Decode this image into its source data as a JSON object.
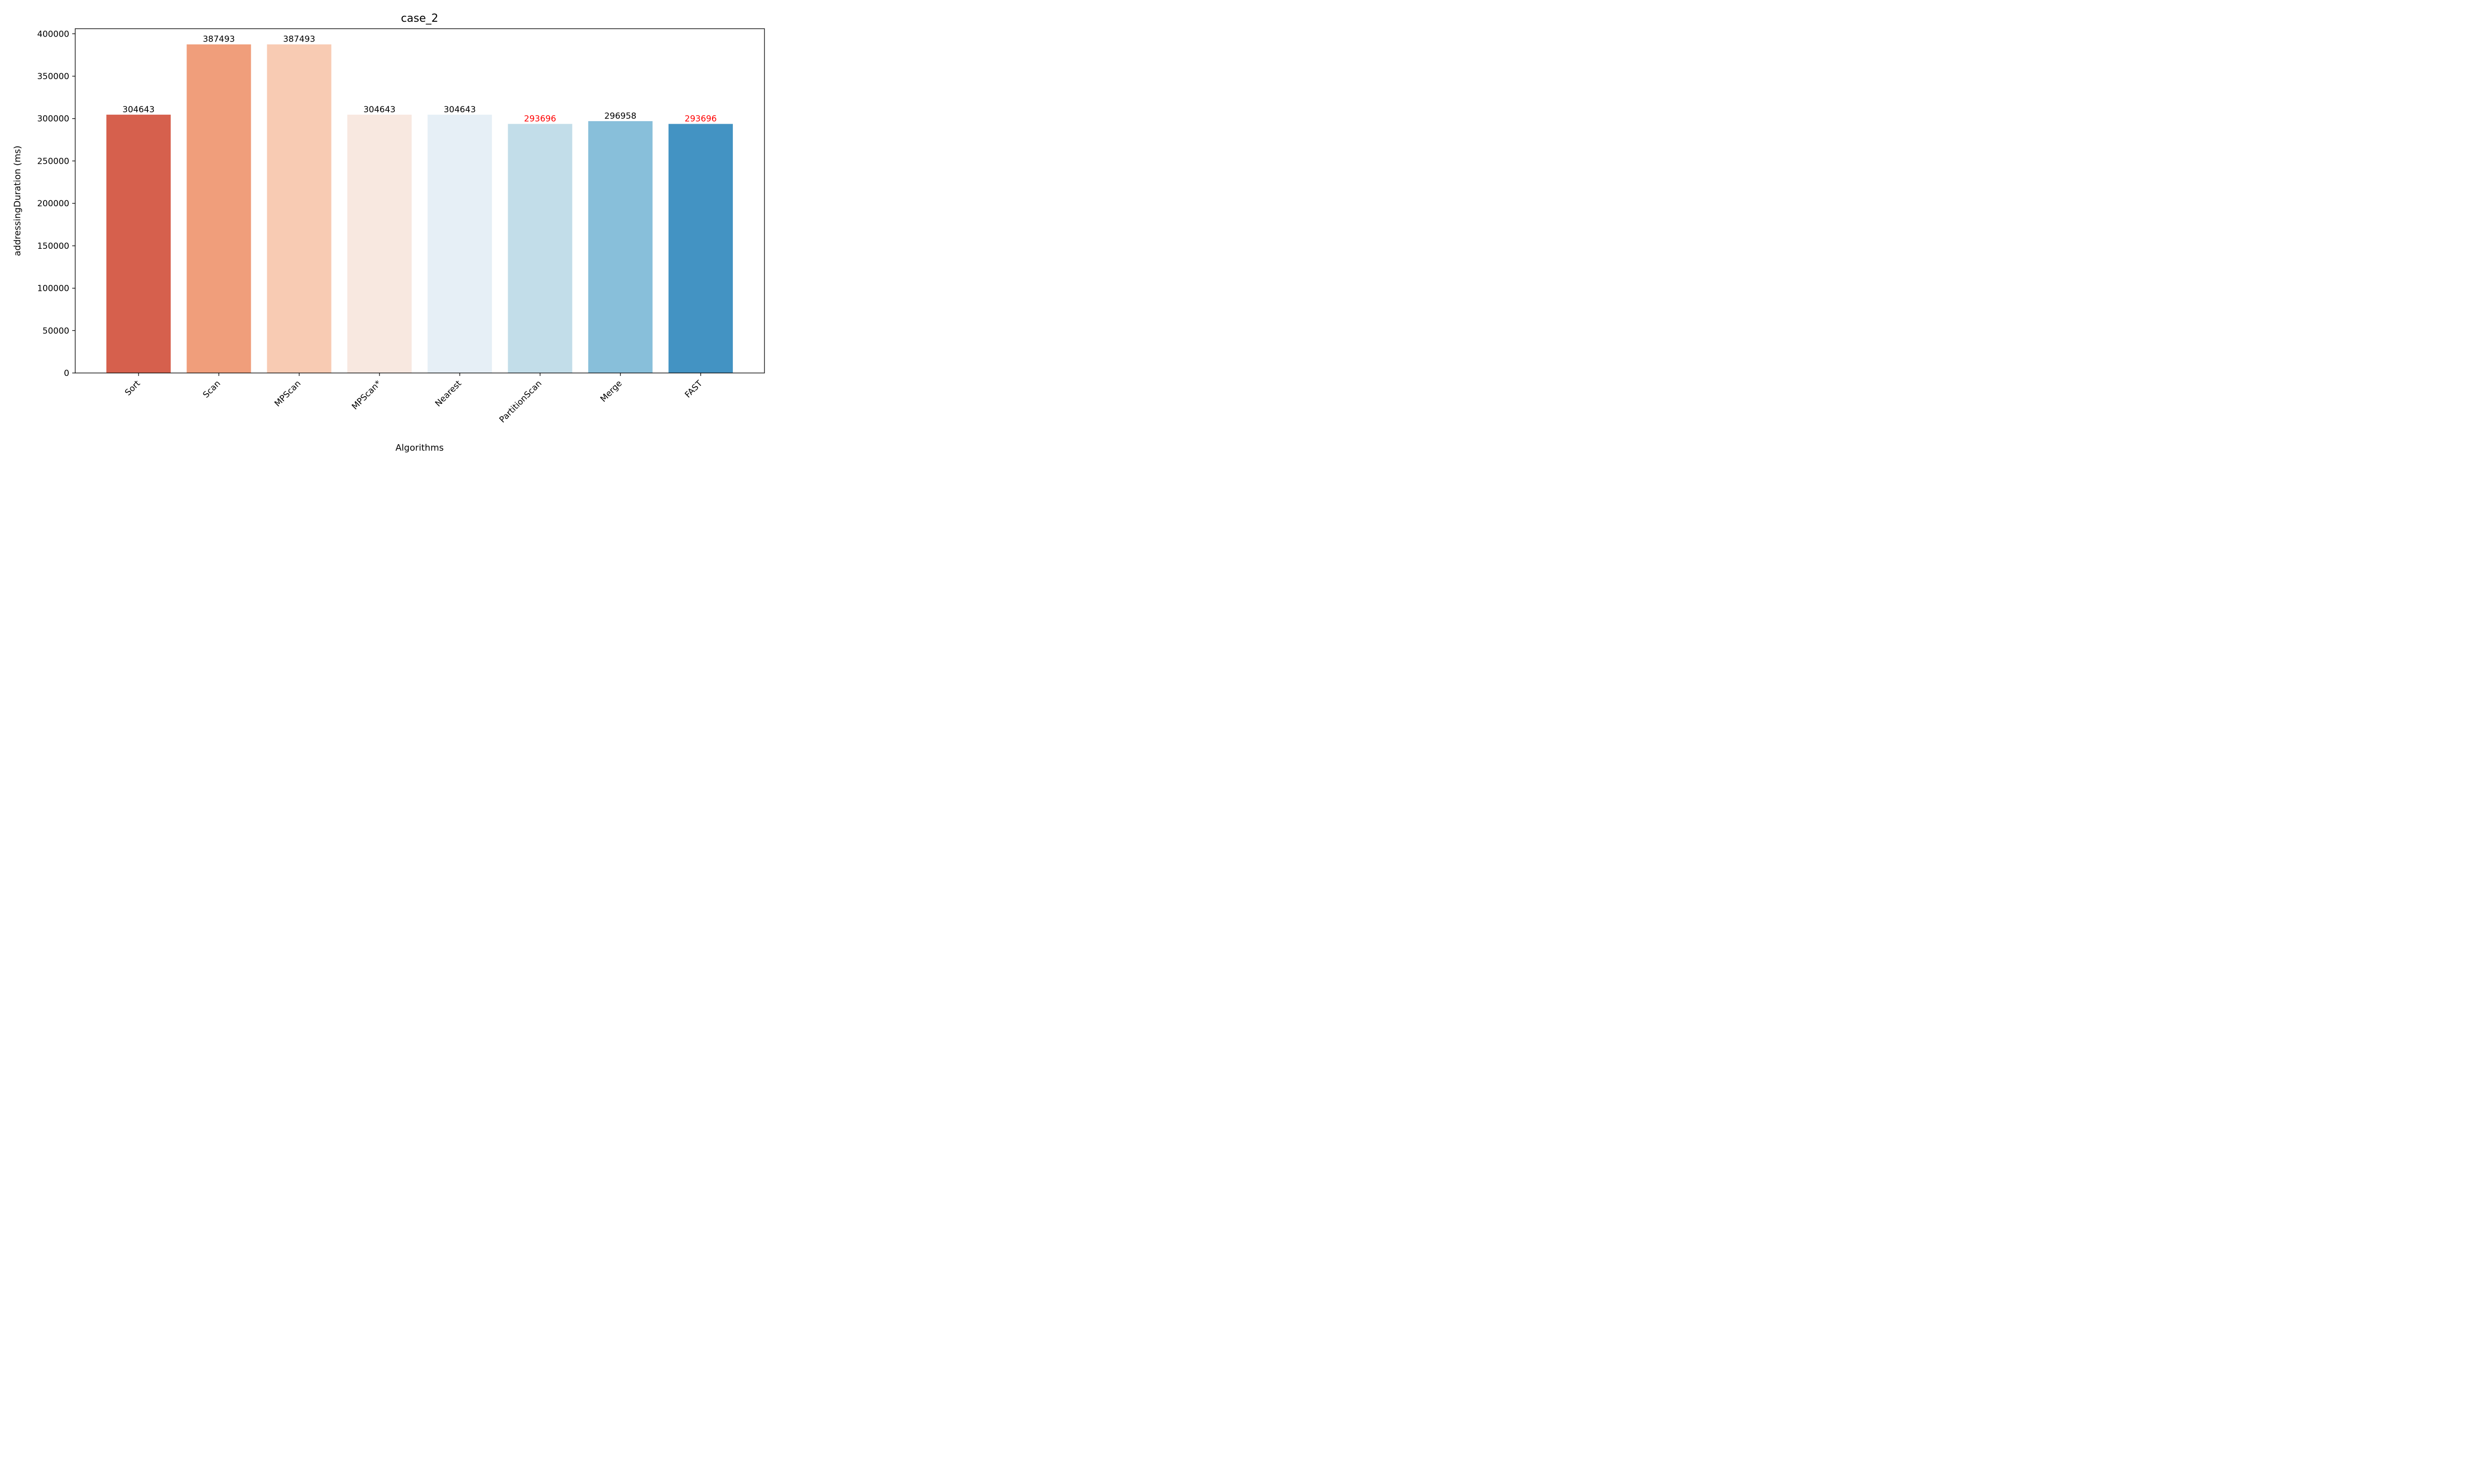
{
  "chart_data": {
    "type": "bar",
    "title": "case_2",
    "xlabel": "Algorithms",
    "ylabel": "addressingDuration (ms)",
    "ylim": [
      0,
      406000
    ],
    "yticks": [
      0,
      50000,
      100000,
      150000,
      200000,
      250000,
      300000,
      350000,
      400000
    ],
    "categories": [
      "Sort",
      "Scan",
      "MPScan",
      "MPScan*",
      "Nearest",
      "PartitionScan",
      "Merge",
      "FAST"
    ],
    "values": [
      304643,
      387493,
      387493,
      304643,
      304643,
      293696,
      296958,
      293696
    ],
    "value_labels": [
      "304643",
      "387493",
      "387493",
      "304643",
      "304643",
      "293696",
      "296958",
      "293696"
    ],
    "colors": [
      "#d6604d",
      "#f09e7b",
      "#f8cbb3",
      "#f8e8e0",
      "#e6eff6",
      "#c2dde9",
      "#88bfda",
      "#4393c3"
    ],
    "label_colors": [
      "#000000",
      "#000000",
      "#000000",
      "#000000",
      "#000000",
      "#ff0000",
      "#000000",
      "#ff0000"
    ],
    "grid": false,
    "legend": false
  }
}
